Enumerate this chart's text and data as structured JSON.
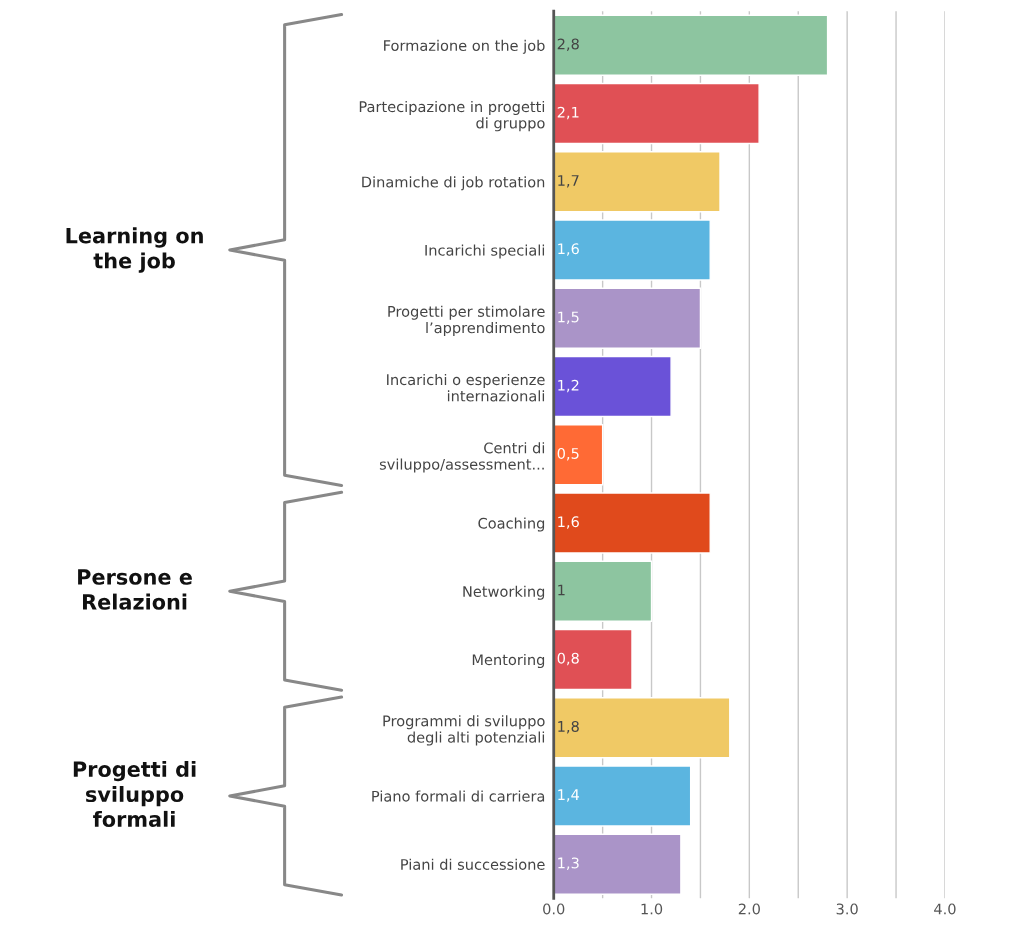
{
  "chart_data": {
    "type": "bar",
    "orientation": "horizontal",
    "categories": [
      "Formazione on the job",
      "Partecipazione in progetti\ndi gruppo",
      "Dinamiche di job rotation",
      "Incarichi speciali",
      "Progetti per stimolare\nl’apprendimento",
      "Incarichi o esperienze\ninternazionali",
      "Centri di\nsviluppo/assessment...",
      "Coaching",
      "Networking",
      "Mentoring",
      "Programmi di sviluppo\ndegli alti potenziali",
      "Piano formali di carriera",
      "Piani di successione"
    ],
    "values": [
      2.8,
      2.1,
      1.7,
      1.6,
      1.5,
      1.2,
      0.5,
      1.6,
      1,
      0.8,
      1.8,
      1.4,
      1.3
    ],
    "value_labels": [
      "2,8",
      "2,1",
      "1,7",
      "1,6",
      "1,5",
      "1,2",
      "0,5",
      "1,6",
      "1",
      "0,8",
      "1,8",
      "1,4",
      "1,3"
    ],
    "colors": [
      "#8dc5a0",
      "#e05055",
      "#f0c965",
      "#5bb5e0",
      "#aa94c8",
      "#6a52d8",
      "#ff6a35",
      "#e04a1c",
      "#8dc5a0",
      "#e05055",
      "#f0c965",
      "#5bb5e0",
      "#aa94c8"
    ],
    "xlim": [
      0,
      4
    ],
    "xticks": [
      {
        "value": 0,
        "label": "0.0"
      },
      {
        "value": 0.5,
        "label": null
      },
      {
        "value": 1,
        "label": "1.0"
      },
      {
        "value": 1.5,
        "label": null
      },
      {
        "value": 2,
        "label": "2.0"
      },
      {
        "value": 2.5,
        "label": null
      },
      {
        "value": 3,
        "label": "3.0"
      },
      {
        "value": 3.5,
        "label": null
      },
      {
        "value": 4,
        "label": "4.0"
      }
    ],
    "grid": "x",
    "annotations": [
      "Learning on\nthe job",
      "Persone e\nRelazioni",
      "Progetti di\nsviluppo\nformali"
    ]
  }
}
